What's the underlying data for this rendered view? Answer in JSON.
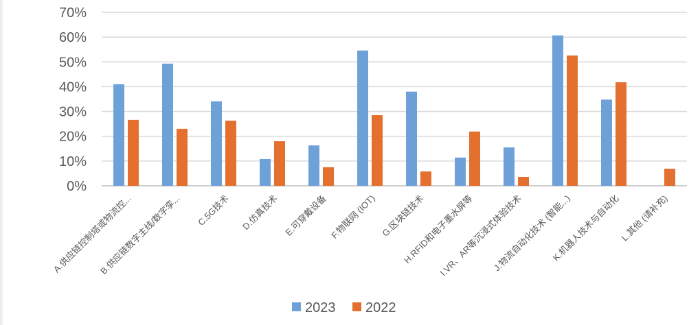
{
  "chart_data": {
    "type": "bar",
    "title": "",
    "xlabel": "",
    "ylabel": "",
    "ylim": [
      0,
      70
    ],
    "y_ticks": [
      "0%",
      "10%",
      "20%",
      "30%",
      "40%",
      "50%",
      "60%",
      "70%"
    ],
    "grid": true,
    "legend_position": "bottom",
    "categories": [
      "A.供应链控制塔或物流控...",
      "B.供应链数字主线/数字孪...",
      "C.5G技术",
      "D.仿真技术",
      "E.可穿戴设备",
      "F.物联网 (IOT)",
      "G.区块链技术",
      "H.RFID和电子墨水屏等",
      "I.VR、AR等沉浸式体验技术",
      "J.物流自动化技术 (智能...)",
      "K.机器人技术与自动化",
      "L.其他 (请补充)"
    ],
    "series": [
      {
        "name": "2023",
        "color": "#6FA1D9",
        "values": [
          41.0,
          49.3,
          34.1,
          10.8,
          16.3,
          54.6,
          38.0,
          11.4,
          15.5,
          60.7,
          34.8,
          0
        ]
      },
      {
        "name": "2022",
        "color": "#E4702F",
        "values": [
          26.6,
          23.0,
          26.3,
          18.0,
          7.5,
          28.5,
          5.8,
          21.9,
          3.6,
          52.6,
          41.8,
          6.9
        ]
      }
    ]
  }
}
